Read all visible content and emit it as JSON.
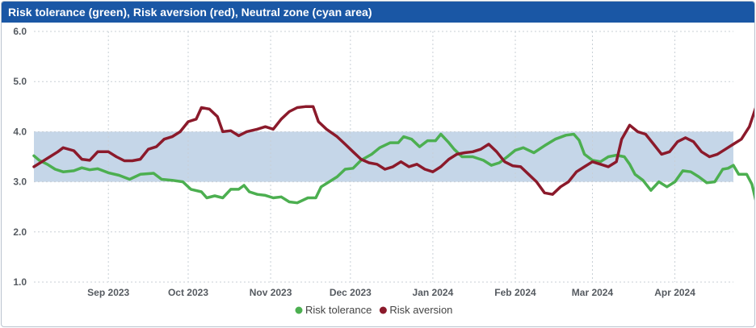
{
  "title": "Risk tolerance (green), Risk aversion (red), Neutral zone (cyan area)",
  "chart_data": {
    "type": "line",
    "title": "Risk tolerance (green), Risk aversion (red), Neutral zone (cyan area)",
    "ylim": [
      1.0,
      6.0
    ],
    "yticks": [
      "1.0",
      "2.0",
      "3.0",
      "4.0",
      "5.0",
      "6.0"
    ],
    "x_range": [
      "2023-08-04",
      "2024-04-23"
    ],
    "xticks": [
      {
        "date": "2023-09-01",
        "label": "Sep 2023"
      },
      {
        "date": "2023-10-01",
        "label": "Oct 2023"
      },
      {
        "date": "2023-11-01",
        "label": "Nov 2023"
      },
      {
        "date": "2023-12-01",
        "label": "Dec 2023"
      },
      {
        "date": "2024-01-01",
        "label": "Jan 2024"
      },
      {
        "date": "2024-02-01",
        "label": "Feb 2024"
      },
      {
        "date": "2024-03-01",
        "label": "Mar 2024"
      },
      {
        "date": "2024-04-01",
        "label": "Apr 2024"
      }
    ],
    "neutral_zone": {
      "y_min": 3.0,
      "y_max": 4.0,
      "color": "#c5d6e8"
    },
    "grid": true,
    "legend_position": "bottom-center",
    "series": [
      {
        "name": "Risk tolerance",
        "color": "#4caf50",
        "points": [
          [
            "2023-08-04",
            3.52
          ],
          [
            "2023-08-06",
            3.43
          ],
          [
            "2023-08-09",
            3.35
          ],
          [
            "2023-08-12",
            3.25
          ],
          [
            "2023-08-15",
            3.2
          ],
          [
            "2023-08-19",
            3.22
          ],
          [
            "2023-08-22",
            3.28
          ],
          [
            "2023-08-25",
            3.24
          ],
          [
            "2023-08-28",
            3.26
          ],
          [
            "2023-09-01",
            3.18
          ],
          [
            "2023-09-05",
            3.13
          ],
          [
            "2023-09-09",
            3.05
          ],
          [
            "2023-09-13",
            3.15
          ],
          [
            "2023-09-18",
            3.17
          ],
          [
            "2023-09-21",
            3.05
          ],
          [
            "2023-09-25",
            3.03
          ],
          [
            "2023-09-29",
            3.0
          ],
          [
            "2023-10-02",
            2.85
          ],
          [
            "2023-10-06",
            2.8
          ],
          [
            "2023-10-08",
            2.68
          ],
          [
            "2023-10-11",
            2.72
          ],
          [
            "2023-10-14",
            2.68
          ],
          [
            "2023-10-17",
            2.85
          ],
          [
            "2023-10-20",
            2.85
          ],
          [
            "2023-10-22",
            2.93
          ],
          [
            "2023-10-24",
            2.8
          ],
          [
            "2023-10-27",
            2.75
          ],
          [
            "2023-10-30",
            2.73
          ],
          [
            "2023-11-02",
            2.68
          ],
          [
            "2023-11-05",
            2.7
          ],
          [
            "2023-11-08",
            2.6
          ],
          [
            "2023-11-11",
            2.58
          ],
          [
            "2023-11-15",
            2.68
          ],
          [
            "2023-11-18",
            2.68
          ],
          [
            "2023-11-20",
            2.9
          ],
          [
            "2023-11-23",
            3.0
          ],
          [
            "2023-11-26",
            3.1
          ],
          [
            "2023-11-29",
            3.25
          ],
          [
            "2023-12-02",
            3.27
          ],
          [
            "2023-12-05",
            3.43
          ],
          [
            "2023-12-09",
            3.55
          ],
          [
            "2023-12-12",
            3.68
          ],
          [
            "2023-12-16",
            3.78
          ],
          [
            "2023-12-19",
            3.78
          ],
          [
            "2023-12-21",
            3.9
          ],
          [
            "2023-12-24",
            3.85
          ],
          [
            "2023-12-27",
            3.7
          ],
          [
            "2023-12-30",
            3.82
          ],
          [
            "2024-01-02",
            3.82
          ],
          [
            "2024-01-04",
            3.95
          ],
          [
            "2024-01-07",
            3.78
          ],
          [
            "2024-01-09",
            3.65
          ],
          [
            "2024-01-12",
            3.5
          ],
          [
            "2024-01-16",
            3.5
          ],
          [
            "2024-01-20",
            3.43
          ],
          [
            "2024-01-23",
            3.33
          ],
          [
            "2024-01-26",
            3.38
          ],
          [
            "2024-01-29",
            3.5
          ],
          [
            "2024-02-01",
            3.63
          ],
          [
            "2024-02-04",
            3.68
          ],
          [
            "2024-02-08",
            3.58
          ],
          [
            "2024-02-12",
            3.72
          ],
          [
            "2024-02-16",
            3.85
          ],
          [
            "2024-02-20",
            3.93
          ],
          [
            "2024-02-23",
            3.95
          ],
          [
            "2024-02-25",
            3.83
          ],
          [
            "2024-02-27",
            3.55
          ],
          [
            "2024-03-01",
            3.43
          ],
          [
            "2024-03-04",
            3.4
          ],
          [
            "2024-03-07",
            3.5
          ],
          [
            "2024-03-10",
            3.53
          ],
          [
            "2024-03-13",
            3.5
          ],
          [
            "2024-03-15",
            3.35
          ],
          [
            "2024-03-17",
            3.15
          ],
          [
            "2024-03-20",
            3.03
          ],
          [
            "2024-03-23",
            2.83
          ],
          [
            "2024-03-26",
            3.0
          ],
          [
            "2024-03-29",
            2.9
          ],
          [
            "2024-04-01",
            3.0
          ],
          [
            "2024-04-04",
            3.22
          ],
          [
            "2024-04-07",
            3.2
          ],
          [
            "2024-04-10",
            3.1
          ],
          [
            "2024-04-13",
            2.98
          ],
          [
            "2024-04-16",
            3.0
          ],
          [
            "2024-04-19",
            3.25
          ],
          [
            "2024-04-21",
            3.27
          ],
          [
            "2024-04-23",
            3.33
          ],
          [
            "2024-04-25",
            3.15
          ],
          [
            "2024-04-28",
            3.15
          ],
          [
            "2024-04-30",
            2.95
          ],
          [
            "2024-05-02",
            2.5
          ]
        ]
      },
      {
        "name": "Risk aversion",
        "color": "#8b1a2b",
        "points": [
          [
            "2023-08-04",
            3.3
          ],
          [
            "2023-08-07",
            3.4
          ],
          [
            "2023-08-10",
            3.5
          ],
          [
            "2023-08-13",
            3.6
          ],
          [
            "2023-08-15",
            3.68
          ],
          [
            "2023-08-19",
            3.62
          ],
          [
            "2023-08-22",
            3.45
          ],
          [
            "2023-08-25",
            3.43
          ],
          [
            "2023-08-28",
            3.6
          ],
          [
            "2023-09-01",
            3.6
          ],
          [
            "2023-09-04",
            3.5
          ],
          [
            "2023-09-07",
            3.42
          ],
          [
            "2023-09-10",
            3.42
          ],
          [
            "2023-09-13",
            3.45
          ],
          [
            "2023-09-16",
            3.65
          ],
          [
            "2023-09-19",
            3.7
          ],
          [
            "2023-09-22",
            3.85
          ],
          [
            "2023-09-25",
            3.9
          ],
          [
            "2023-09-28",
            4.0
          ],
          [
            "2023-10-01",
            4.2
          ],
          [
            "2023-10-04",
            4.25
          ],
          [
            "2023-10-06",
            4.48
          ],
          [
            "2023-10-09",
            4.45
          ],
          [
            "2023-10-12",
            4.3
          ],
          [
            "2023-10-14",
            4.0
          ],
          [
            "2023-10-17",
            4.02
          ],
          [
            "2023-10-20",
            3.92
          ],
          [
            "2023-10-23",
            4.0
          ],
          [
            "2023-10-27",
            4.05
          ],
          [
            "2023-10-30",
            4.1
          ],
          [
            "2023-11-02",
            4.05
          ],
          [
            "2023-11-05",
            4.25
          ],
          [
            "2023-11-08",
            4.4
          ],
          [
            "2023-11-11",
            4.48
          ],
          [
            "2023-11-14",
            4.5
          ],
          [
            "2023-11-17",
            4.5
          ],
          [
            "2023-11-19",
            4.2
          ],
          [
            "2023-11-22",
            4.05
          ],
          [
            "2023-11-26",
            3.9
          ],
          [
            "2023-11-29",
            3.75
          ],
          [
            "2023-12-02",
            3.6
          ],
          [
            "2023-12-05",
            3.45
          ],
          [
            "2023-12-08",
            3.38
          ],
          [
            "2023-12-11",
            3.35
          ],
          [
            "2023-12-14",
            3.25
          ],
          [
            "2023-12-17",
            3.3
          ],
          [
            "2023-12-20",
            3.4
          ],
          [
            "2023-12-23",
            3.3
          ],
          [
            "2023-12-26",
            3.35
          ],
          [
            "2023-12-29",
            3.25
          ],
          [
            "2024-01-01",
            3.2
          ],
          [
            "2024-01-04",
            3.3
          ],
          [
            "2024-01-07",
            3.45
          ],
          [
            "2024-01-10",
            3.55
          ],
          [
            "2024-01-13",
            3.58
          ],
          [
            "2024-01-16",
            3.6
          ],
          [
            "2024-01-19",
            3.65
          ],
          [
            "2024-01-22",
            3.75
          ],
          [
            "2024-01-25",
            3.6
          ],
          [
            "2024-01-28",
            3.4
          ],
          [
            "2024-01-31",
            3.32
          ],
          [
            "2024-02-03",
            3.3
          ],
          [
            "2024-02-06",
            3.15
          ],
          [
            "2024-02-09",
            3.0
          ],
          [
            "2024-02-12",
            2.78
          ],
          [
            "2024-02-15",
            2.75
          ],
          [
            "2024-02-18",
            2.9
          ],
          [
            "2024-02-21",
            3.0
          ],
          [
            "2024-02-24",
            3.2
          ],
          [
            "2024-02-27",
            3.3
          ],
          [
            "2024-03-01",
            3.4
          ],
          [
            "2024-03-04",
            3.35
          ],
          [
            "2024-03-07",
            3.3
          ],
          [
            "2024-03-10",
            3.4
          ],
          [
            "2024-03-12",
            3.85
          ],
          [
            "2024-03-15",
            4.13
          ],
          [
            "2024-03-18",
            4.0
          ],
          [
            "2024-03-21",
            3.95
          ],
          [
            "2024-03-24",
            3.75
          ],
          [
            "2024-03-27",
            3.55
          ],
          [
            "2024-03-30",
            3.6
          ],
          [
            "2024-04-02",
            3.8
          ],
          [
            "2024-04-05",
            3.88
          ],
          [
            "2024-04-08",
            3.8
          ],
          [
            "2024-04-11",
            3.6
          ],
          [
            "2024-04-14",
            3.5
          ],
          [
            "2024-04-17",
            3.55
          ],
          [
            "2024-04-20",
            3.65
          ],
          [
            "2024-04-23",
            3.75
          ],
          [
            "2024-04-26",
            3.85
          ],
          [
            "2024-04-29",
            4.1
          ],
          [
            "2024-05-02",
            4.57
          ]
        ]
      }
    ]
  }
}
